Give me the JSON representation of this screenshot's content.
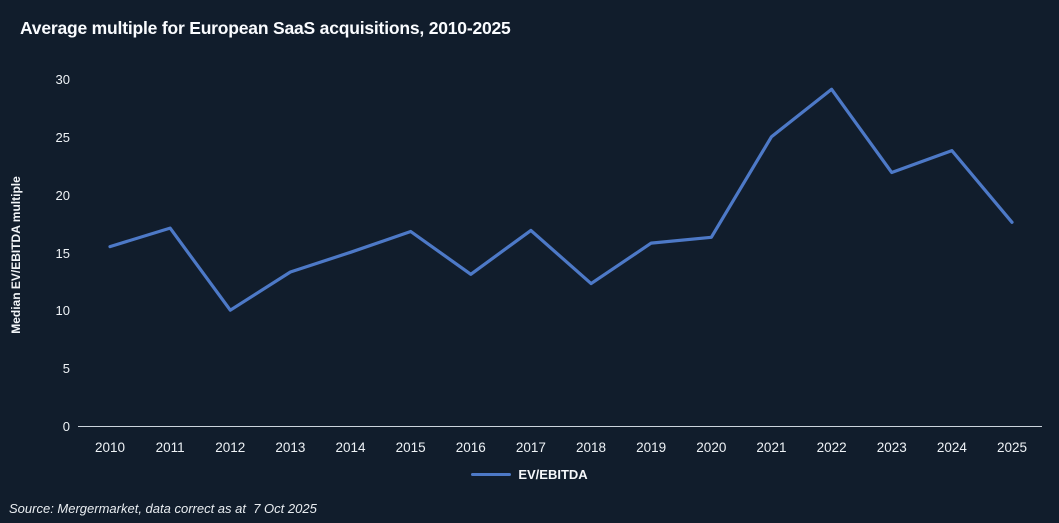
{
  "title": "Average multiple for European SaaS acquisitions, 2010-2025",
  "source": "Source: Mergermarket, data correct as at  7 Oct 2025",
  "legend": {
    "label": "EV/EBITDA"
  },
  "colors": {
    "background": "#111d2c",
    "line": "#4d79c7",
    "axis": "#ccd4dd",
    "text": "#f5f7fa"
  },
  "chart_data": {
    "type": "line",
    "title": "Average multiple for European SaaS acquisitions, 2010-2025",
    "xlabel": "",
    "ylabel": "Median EV/EBITDA multiple",
    "categories": [
      "2010",
      "2011",
      "2012",
      "2013",
      "2014",
      "2015",
      "2016",
      "2017",
      "2018",
      "2019",
      "2020",
      "2021",
      "2022",
      "2023",
      "2024",
      "2025"
    ],
    "series": [
      {
        "name": "EV/EBITDA",
        "values": [
          15.6,
          17.2,
          10.1,
          13.4,
          15.1,
          16.9,
          13.2,
          17.0,
          12.4,
          15.9,
          16.4,
          25.1,
          29.2,
          22.0,
          23.9,
          17.7
        ]
      }
    ],
    "ylim": [
      0,
      30
    ],
    "yticks": [
      0,
      5,
      10,
      15,
      20,
      25,
      30
    ],
    "grid": false,
    "legend_position": "bottom"
  }
}
